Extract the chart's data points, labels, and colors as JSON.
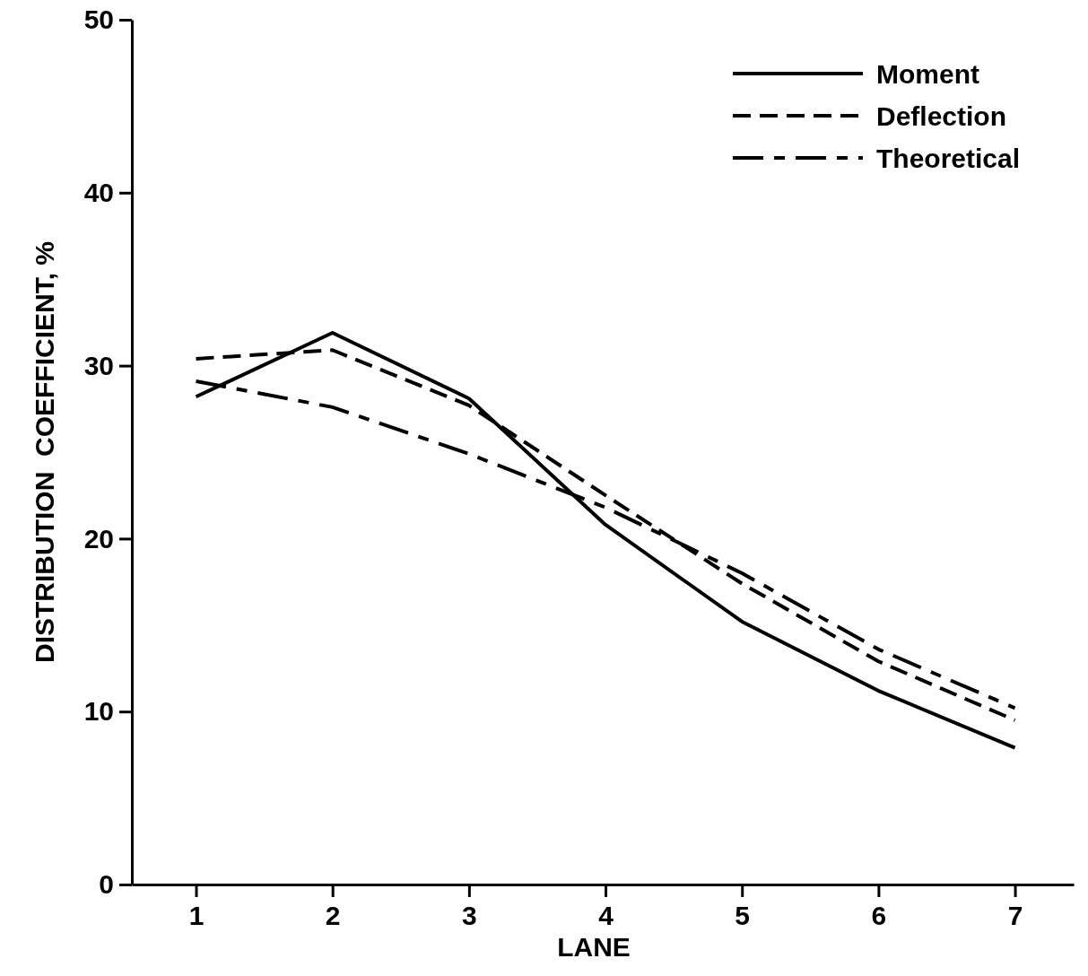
{
  "chart_data": {
    "type": "line",
    "xlabel": "LANE",
    "ylabel": "DISTRIBUTION  COEFFICIENT, %",
    "x": [
      1,
      2,
      3,
      4,
      5,
      6,
      7
    ],
    "series": [
      {
        "name": "Moment",
        "color": "#000000",
        "line_style": "solid",
        "values": [
          28.2,
          31.9,
          28.1,
          20.8,
          15.2,
          11.2,
          7.9
        ]
      },
      {
        "name": "Deflection",
        "color": "#000000",
        "line_style": "dashed",
        "values": [
          30.4,
          30.9,
          27.7,
          22.5,
          17.4,
          12.9,
          9.5
        ]
      },
      {
        "name": "Theoretical",
        "color": "#000000",
        "line_style": "dashed",
        "values": [
          29.1,
          27.6,
          24.9,
          21.8,
          18.0,
          13.6,
          10.2
        ]
      }
    ],
    "xlim": [
      0.53,
      7.43
    ],
    "xticks": [
      1,
      2,
      3,
      4,
      5,
      6,
      7
    ],
    "ylim": [
      0,
      50
    ],
    "yticks": [
      0,
      10,
      20,
      30,
      40,
      50
    ],
    "grid": false,
    "legend": "top right",
    "marker": "none"
  }
}
